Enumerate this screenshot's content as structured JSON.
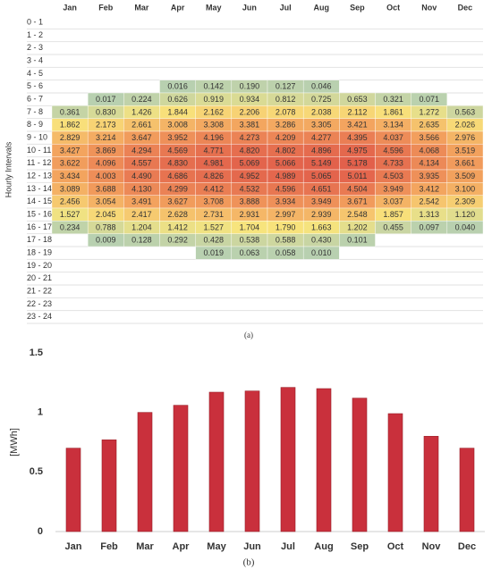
{
  "chart_data": [
    {
      "type": "heatmap",
      "ylabel": "Hourly Intervals",
      "caption": "(a)",
      "columns": [
        "Jan",
        "Feb",
        "Mar",
        "Apr",
        "May",
        "Jun",
        "Jul",
        "Aug",
        "Sep",
        "Oct",
        "Nov",
        "Dec"
      ],
      "rows": [
        "0 - 1",
        "1 - 2",
        "2 - 3",
        "3 - 4",
        "4 - 5",
        "5 - 6",
        "6 - 7",
        "7 - 8",
        "8 - 9",
        "9 - 10",
        "10 - 11",
        "11 - 12",
        "12 - 13",
        "13 - 14",
        "14 - 15",
        "15 - 16",
        "16 - 17",
        "17 - 18",
        "18 - 19",
        "19 - 20",
        "20 - 21",
        "21 - 22",
        "22 - 23",
        "23 - 24"
      ],
      "colors": [
        "#b8d0b0",
        "#f8e47c",
        "#f3a35e",
        "#e2604b"
      ],
      "values": [
        [
          null,
          null,
          null,
          null,
          null,
          null,
          null,
          null,
          null,
          null,
          null,
          null
        ],
        [
          null,
          null,
          null,
          null,
          null,
          null,
          null,
          null,
          null,
          null,
          null,
          null
        ],
        [
          null,
          null,
          null,
          null,
          null,
          null,
          null,
          null,
          null,
          null,
          null,
          null
        ],
        [
          null,
          null,
          null,
          null,
          null,
          null,
          null,
          null,
          null,
          null,
          null,
          null
        ],
        [
          null,
          null,
          null,
          null,
          null,
          null,
          null,
          null,
          null,
          null,
          null,
          null
        ],
        [
          null,
          null,
          null,
          0.016,
          0.142,
          0.19,
          0.127,
          0.046,
          null,
          null,
          null,
          null
        ],
        [
          null,
          0.017,
          0.224,
          0.626,
          0.919,
          0.934,
          0.812,
          0.725,
          0.653,
          0.321,
          0.071,
          null
        ],
        [
          0.361,
          0.83,
          1.426,
          1.844,
          2.162,
          2.206,
          2.078,
          2.038,
          2.112,
          1.861,
          1.272,
          0.563
        ],
        [
          1.862,
          2.173,
          2.661,
          3.008,
          3.308,
          3.381,
          3.286,
          3.305,
          3.421,
          3.134,
          2.635,
          2.026
        ],
        [
          2.829,
          3.214,
          3.647,
          3.952,
          4.196,
          4.273,
          4.209,
          4.277,
          4.395,
          4.037,
          3.566,
          2.976
        ],
        [
          3.427,
          3.869,
          4.294,
          4.569,
          4.771,
          4.82,
          4.802,
          4.896,
          4.975,
          4.596,
          4.068,
          3.519
        ],
        [
          3.622,
          4.096,
          4.557,
          4.83,
          4.981,
          5.069,
          5.066,
          5.149,
          5.178,
          4.733,
          4.134,
          3.661
        ],
        [
          3.434,
          4.003,
          4.49,
          4.686,
          4.826,
          4.952,
          4.989,
          5.065,
          5.011,
          4.503,
          3.935,
          3.509
        ],
        [
          3.089,
          3.688,
          4.13,
          4.299,
          4.412,
          4.532,
          4.596,
          4.651,
          4.504,
          3.949,
          3.412,
          3.1
        ],
        [
          2.456,
          3.054,
          3.491,
          3.627,
          3.708,
          3.888,
          3.934,
          3.949,
          3.671,
          3.037,
          2.542,
          2.309
        ],
        [
          1.527,
          2.045,
          2.417,
          2.628,
          2.731,
          2.931,
          2.997,
          2.939,
          2.548,
          1.857,
          1.313,
          1.12
        ],
        [
          0.234,
          0.788,
          1.204,
          1.412,
          1.527,
          1.704,
          1.79,
          1.663,
          1.202,
          0.455,
          0.097,
          0.04
        ],
        [
          null,
          0.009,
          0.128,
          0.292,
          0.428,
          0.538,
          0.588,
          0.43,
          0.101,
          null,
          null,
          null
        ],
        [
          null,
          null,
          null,
          null,
          0.019,
          0.063,
          0.058,
          0.01,
          null,
          null,
          null,
          null
        ],
        [
          null,
          null,
          null,
          null,
          null,
          null,
          null,
          null,
          null,
          null,
          null,
          null
        ],
        [
          null,
          null,
          null,
          null,
          null,
          null,
          null,
          null,
          null,
          null,
          null,
          null
        ],
        [
          null,
          null,
          null,
          null,
          null,
          null,
          null,
          null,
          null,
          null,
          null,
          null
        ],
        [
          null,
          null,
          null,
          null,
          null,
          null,
          null,
          null,
          null,
          null,
          null,
          null
        ],
        [
          null,
          null,
          null,
          null,
          null,
          null,
          null,
          null,
          null,
          null,
          null,
          null
        ]
      ],
      "value_labels": [
        [
          null,
          null,
          null,
          null,
          null,
          null,
          null,
          null,
          null,
          null,
          null,
          null
        ],
        [
          null,
          null,
          null,
          null,
          null,
          null,
          null,
          null,
          null,
          null,
          null,
          null
        ],
        [
          null,
          null,
          null,
          null,
          null,
          null,
          null,
          null,
          null,
          null,
          null,
          null
        ],
        [
          null,
          null,
          null,
          null,
          null,
          null,
          null,
          null,
          null,
          null,
          null,
          null
        ],
        [
          null,
          null,
          null,
          null,
          null,
          null,
          null,
          null,
          null,
          null,
          null,
          null
        ],
        [
          null,
          null,
          null,
          "0.016",
          "0.142",
          "0.190",
          "0.127",
          "0.046",
          null,
          null,
          null,
          null
        ],
        [
          null,
          "0.017",
          "0.224",
          "0.626",
          "0.919",
          "0.934",
          "0.812",
          "0.725",
          "0.653",
          "0.321",
          "0.071",
          null
        ],
        [
          "0.361",
          "0.830",
          "1.426",
          "1.844",
          "2.162",
          "2.206",
          "2.078",
          "2.038",
          "2.112",
          "1.861",
          "1.272",
          "0.563"
        ],
        [
          "1.862",
          "2.173",
          "2.661",
          "3.008",
          "3.308",
          "3.381",
          "3.286",
          "3.305",
          "3.421",
          "3.134",
          "2.635",
          "2.026"
        ],
        [
          "2.829",
          "3.214",
          "3.647",
          "3.952",
          "4.196",
          "4.273",
          "4.209",
          "4.277",
          "4.395",
          "4.037",
          "3.566",
          "2.976"
        ],
        [
          "3.427",
          "3.869",
          "4.294",
          "4.569",
          "4.771",
          "4.820",
          "4.802",
          "4.896",
          "4.975",
          "4.596",
          "4.068",
          "3.519"
        ],
        [
          "3.622",
          "4.096",
          "4.557",
          "4.830",
          "4.981",
          "5.069",
          "5.066",
          "5.149",
          "5.178",
          "4.733",
          "4.134",
          "3.661"
        ],
        [
          "3.434",
          "4.003",
          "4.490",
          "4.686",
          "4.826",
          "4.952",
          "4.989",
          "5.065",
          "5.011",
          "4.503",
          "3.935",
          "3.509"
        ],
        [
          "3.089",
          "3.688",
          "4.130",
          "4.299",
          "4.412",
          "4.532",
          "4.596",
          "4.651",
          "4.504",
          "3.949",
          "3.412",
          "3.100"
        ],
        [
          "2.456",
          "3.054",
          "3.491",
          "3.627",
          "3.708",
          "3.888",
          "3.934",
          "3.949",
          "3.671",
          "3.037",
          "2.542",
          "2.309"
        ],
        [
          "1.527",
          "2.045",
          "2.417",
          "2.628",
          "2.731",
          "2.931",
          "2.997",
          "2.939",
          "2.548",
          "1.857",
          "1.313",
          "1.120"
        ],
        [
          "0.234",
          "0.788",
          "1.204",
          "1.412",
          "1.527",
          "1.704",
          "1.790",
          "1.663",
          "1.202",
          "0.455",
          "0.097",
          "0.040"
        ],
        [
          null,
          "0.009",
          "0.128",
          "0.292",
          "0.428",
          "0.538",
          "0.588",
          "0.430",
          "0.101",
          null,
          null,
          null
        ],
        [
          null,
          null,
          null,
          null,
          "0.019",
          "0.063",
          "0.058",
          "0.010",
          null,
          null,
          null,
          null
        ],
        [
          null,
          null,
          null,
          null,
          null,
          null,
          null,
          null,
          null,
          null,
          null,
          null
        ],
        [
          null,
          null,
          null,
          null,
          null,
          null,
          null,
          null,
          null,
          null,
          null,
          null
        ],
        [
          null,
          null,
          null,
          null,
          null,
          null,
          null,
          null,
          null,
          null,
          null,
          null
        ],
        [
          null,
          null,
          null,
          null,
          null,
          null,
          null,
          null,
          null,
          null,
          null,
          null
        ],
        [
          null,
          null,
          null,
          null,
          null,
          null,
          null,
          null,
          null,
          null,
          null,
          null
        ]
      ]
    },
    {
      "type": "bar",
      "ylabel": "[MWh]",
      "caption": "(b)",
      "categories": [
        "Jan",
        "Feb",
        "Mar",
        "Apr",
        "May",
        "Jun",
        "Jul",
        "Aug",
        "Sep",
        "Oct",
        "Nov",
        "Dec"
      ],
      "values": [
        0.7,
        0.77,
        1.0,
        1.06,
        1.17,
        1.18,
        1.21,
        1.2,
        1.12,
        0.99,
        0.8,
        0.7
      ],
      "color": "#c9303c",
      "ylim": [
        0,
        1.5
      ],
      "yticks": [
        0,
        0.5,
        1,
        1.5
      ],
      "grid": false
    }
  ]
}
